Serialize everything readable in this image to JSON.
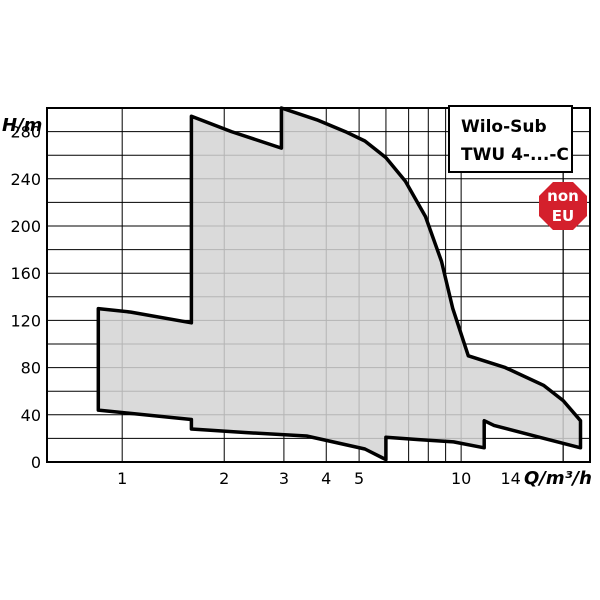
{
  "chart_data": {
    "type": "area",
    "title_line1": "Wilo-Sub",
    "title_line2": "TWU 4-...-C",
    "badge": {
      "line1": "non",
      "line2": "EU",
      "color": "#d4202c"
    },
    "xlabel": "Q/m³/h",
    "ylabel": "H/m",
    "x_scale": "log",
    "xlim": [
      0.6,
      24
    ],
    "ylim": [
      0,
      300
    ],
    "x_ticks": [
      {
        "value": 1,
        "label": "1"
      },
      {
        "value": 2,
        "label": "2"
      },
      {
        "value": 3,
        "label": "3"
      },
      {
        "value": 4,
        "label": "4"
      },
      {
        "value": 5,
        "label": "5"
      },
      {
        "value": 10,
        "label": "10"
      },
      {
        "value": 14,
        "label": "14"
      }
    ],
    "y_ticks": [
      {
        "value": 0,
        "label": "0"
      },
      {
        "value": 40,
        "label": "40"
      },
      {
        "value": 80,
        "label": "80"
      },
      {
        "value": 120,
        "label": "120"
      },
      {
        "value": 160,
        "label": "160"
      },
      {
        "value": 200,
        "label": "200"
      },
      {
        "value": 240,
        "label": "240"
      },
      {
        "value": 280,
        "label": "280"
      }
    ],
    "grid": true,
    "fill_color": "#d3d3d3",
    "outline_color": "#000000",
    "region": [
      {
        "x": 0.85,
        "y": 130
      },
      {
        "x": 1.06,
        "y": 127
      },
      {
        "x": 1.6,
        "y": 118
      },
      {
        "x": 1.6,
        "y": 293
      },
      {
        "x": 2.1,
        "y": 280
      },
      {
        "x": 2.95,
        "y": 266
      },
      {
        "x": 2.95,
        "y": 300
      },
      {
        "x": 3.75,
        "y": 290
      },
      {
        "x": 4.55,
        "y": 280
      },
      {
        "x": 5.2,
        "y": 272
      },
      {
        "x": 6.0,
        "y": 258
      },
      {
        "x": 6.85,
        "y": 238
      },
      {
        "x": 7.85,
        "y": 208
      },
      {
        "x": 8.75,
        "y": 170
      },
      {
        "x": 9.45,
        "y": 130
      },
      {
        "x": 10.5,
        "y": 90
      },
      {
        "x": 13.5,
        "y": 80
      },
      {
        "x": 17.5,
        "y": 65
      },
      {
        "x": 20.0,
        "y": 52
      },
      {
        "x": 22.5,
        "y": 35
      },
      {
        "x": 22.5,
        "y": 12
      },
      {
        "x": 17.0,
        "y": 21
      },
      {
        "x": 12.5,
        "y": 31
      },
      {
        "x": 11.7,
        "y": 35
      },
      {
        "x": 11.7,
        "y": 12
      },
      {
        "x": 9.5,
        "y": 17
      },
      {
        "x": 7.5,
        "y": 19
      },
      {
        "x": 6.0,
        "y": 21
      },
      {
        "x": 6.0,
        "y": 2
      },
      {
        "x": 5.2,
        "y": 11
      },
      {
        "x": 3.5,
        "y": 22
      },
      {
        "x": 2.3,
        "y": 25
      },
      {
        "x": 1.6,
        "y": 28
      },
      {
        "x": 1.6,
        "y": 36
      },
      {
        "x": 0.85,
        "y": 44
      }
    ]
  }
}
